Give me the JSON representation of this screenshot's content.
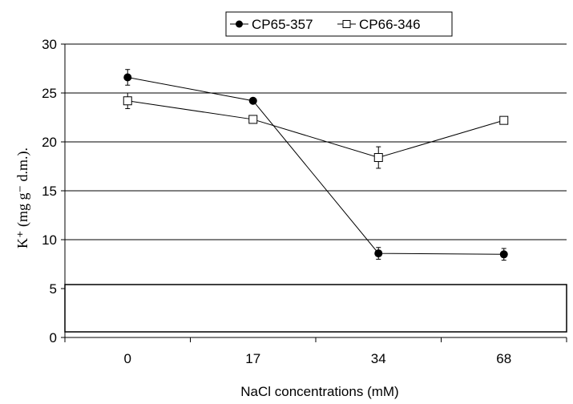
{
  "chart_data": {
    "type": "line",
    "title": "",
    "xlabel": "NaCl concentrations  (mM)",
    "ylabel": "K⁺ (mg g⁻ d.m.).",
    "categories": [
      "0",
      "17",
      "34",
      "68"
    ],
    "ylim": [
      0,
      30
    ],
    "yticks": [
      0,
      5,
      10,
      15,
      20,
      25,
      30
    ],
    "grid": true,
    "legend_position": "top-center",
    "series": [
      {
        "name": "CP65-357",
        "marker": "filled-circle",
        "color": "#000000",
        "values": [
          26.6,
          24.2,
          8.6,
          8.5
        ],
        "error": [
          0.8,
          0.0,
          0.6,
          0.6
        ]
      },
      {
        "name": "CP66-346",
        "marker": "open-square",
        "color": "#000000",
        "values": [
          24.2,
          22.3,
          18.4,
          22.2
        ],
        "error": [
          0.8,
          0.0,
          1.1,
          0.0
        ]
      }
    ]
  }
}
